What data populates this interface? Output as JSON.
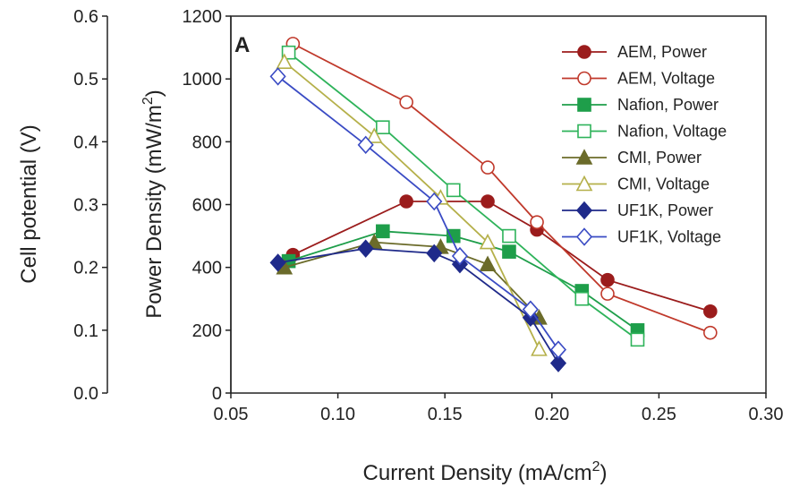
{
  "chart_data": {
    "type": "scatter",
    "panel_label": "A",
    "xlabel": "Current Density (mA/cm",
    "xlabel_sup": "2",
    "xlabel_suffix": ")",
    "ylabel_left": "Power Density (mW/m",
    "ylabel_left_sup": "2",
    "ylabel_left_suffix": ")",
    "ylabel_right": "Cell potential (V)",
    "xlim": [
      0.05,
      0.3
    ],
    "ylim_power": [
      0,
      1200
    ],
    "ylim_voltage": [
      0.0,
      0.6
    ],
    "x_ticks": [
      "0.05",
      "0.10",
      "0.15",
      "0.20",
      "0.25",
      "0.30"
    ],
    "y_ticks_power": [
      "0",
      "200",
      "400",
      "600",
      "800",
      "1000",
      "1200"
    ],
    "y_ticks_voltage": [
      "0.0",
      "0.1",
      "0.2",
      "0.3",
      "0.4",
      "0.5",
      "0.6"
    ],
    "legend_position": "top-right",
    "grid": false,
    "series": [
      {
        "name": "AEM, Power",
        "axis": "power",
        "color": "#9b1c1c",
        "marker": "circle",
        "filled": true,
        "x": [
          0.079,
          0.132,
          0.17,
          0.193,
          0.226,
          0.274
        ],
        "y": [
          440,
          610,
          610,
          520,
          360,
          260
        ]
      },
      {
        "name": "AEM, Voltage",
        "axis": "voltage",
        "color": "#c0392b",
        "marker": "circle",
        "filled": false,
        "x": [
          0.079,
          0.132,
          0.17,
          0.193,
          0.226,
          0.274
        ],
        "y": [
          0.556,
          0.463,
          0.359,
          0.272,
          0.158,
          0.096
        ]
      },
      {
        "name": "Nafion, Power",
        "axis": "power",
        "color": "#1e9e4a",
        "marker": "square",
        "filled": true,
        "x": [
          0.077,
          0.121,
          0.154,
          0.18,
          0.214,
          0.24
        ],
        "y": [
          420,
          515,
          500,
          450,
          325,
          200
        ]
      },
      {
        "name": "Nafion, Voltage",
        "axis": "voltage",
        "color": "#2eb35a",
        "marker": "square",
        "filled": false,
        "x": [
          0.077,
          0.121,
          0.154,
          0.18,
          0.214,
          0.24
        ],
        "y": [
          0.542,
          0.423,
          0.323,
          0.25,
          0.15,
          0.085
        ]
      },
      {
        "name": "CMI, Power",
        "axis": "power",
        "color": "#6b6b2a",
        "marker": "triangle",
        "filled": true,
        "x": [
          0.075,
          0.117,
          0.148,
          0.17,
          0.194
        ],
        "y": [
          400,
          480,
          465,
          410,
          240
        ]
      },
      {
        "name": "CMI, Voltage",
        "axis": "voltage",
        "color": "#b5b04a",
        "marker": "triangle",
        "filled": false,
        "x": [
          0.075,
          0.117,
          0.148,
          0.17,
          0.194
        ],
        "y": [
          0.527,
          0.409,
          0.311,
          0.24,
          0.07
        ]
      },
      {
        "name": "UF1K, Power",
        "axis": "power",
        "color": "#1f2a8a",
        "marker": "diamond",
        "filled": true,
        "x": [
          0.072,
          0.113,
          0.145,
          0.157,
          0.19,
          0.203
        ],
        "y": [
          415,
          460,
          445,
          410,
          240,
          95
        ]
      },
      {
        "name": "UF1K, Voltage",
        "axis": "voltage",
        "color": "#3a4bc4",
        "marker": "diamond",
        "filled": false,
        "x": [
          0.072,
          0.113,
          0.145,
          0.157,
          0.19,
          0.203
        ],
        "y": [
          0.504,
          0.395,
          0.305,
          0.218,
          0.133,
          0.069
        ]
      }
    ]
  }
}
